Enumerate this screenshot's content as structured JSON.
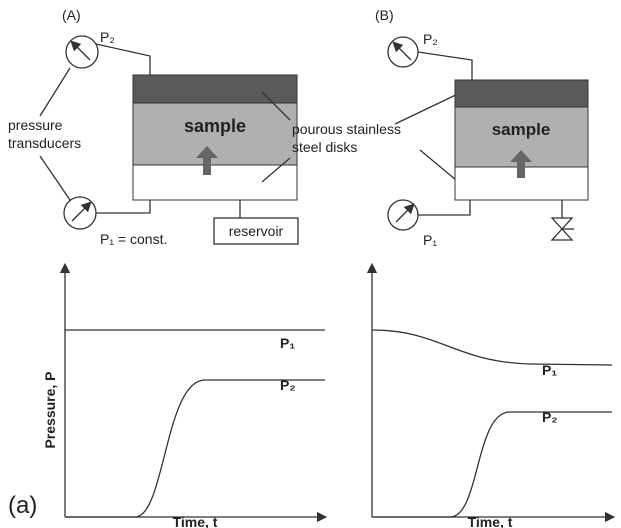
{
  "panel_a": {
    "label": "(A)",
    "p2": "P₂",
    "transducers": [
      "pressure",
      "transducers"
    ],
    "sample": "sample",
    "disks": [
      "pourous stainless",
      "steel disks"
    ],
    "p1": "P₁ = const.",
    "reservoir": "reservoir"
  },
  "panel_b": {
    "label": "(B)",
    "p2": "P₂",
    "sample": "sample",
    "p1": "P₁"
  },
  "plot_left": {
    "y_label": "Pressure, P",
    "x_label": "Time, t",
    "p1": "P₁",
    "p2": "P₂"
  },
  "plot_right": {
    "x_label": "Time, t",
    "p1": "P₁",
    "p2": "P₂"
  },
  "figure_label": "(a)"
}
